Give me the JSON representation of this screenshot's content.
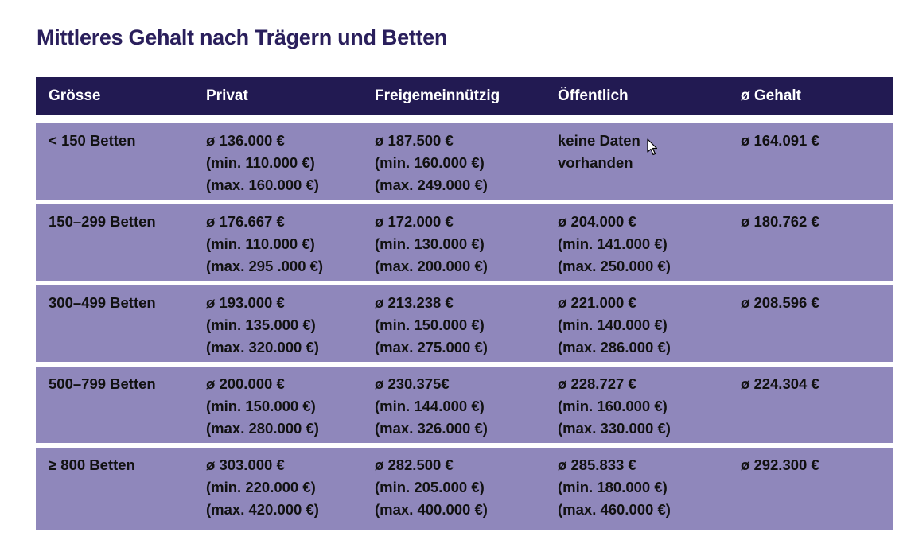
{
  "title": "Mittleres Gehalt nach Trägern und Betten",
  "header": [
    "Grösse",
    "Privat",
    "Freigemeinnützig",
    "Öffentlich",
    "ø Gehalt"
  ],
  "rows": [
    {
      "size": "< 150 Betten",
      "privat": [
        "ø 136.000 €",
        "(min. 110.000 €)",
        "(max. 160.000 €)"
      ],
      "frei": [
        "ø 187.500 €",
        "(min. 160.000 €)",
        "(max. 249.000 €)"
      ],
      "oeff": [
        "keine Daten",
        "vorhanden",
        ""
      ],
      "avg": "ø 164.091 €"
    },
    {
      "size": "150–299 Betten",
      "privat": [
        "ø 176.667 €",
        "(min. 110.000 €)",
        "(max. 295 .000 €)"
      ],
      "frei": [
        "ø 172.000 €",
        "(min. 130.000 €)",
        "(max. 200.000 €)"
      ],
      "oeff": [
        "ø 204.000 €",
        "(min. 141.000 €)",
        "(max. 250.000 €)"
      ],
      "avg": "ø 180.762 €"
    },
    {
      "size": "300–499 Betten",
      "privat": [
        "ø 193.000 €",
        "(min. 135.000 €)",
        "(max. 320.000 €)"
      ],
      "frei": [
        "ø 213.238 €",
        "(min. 150.000 €)",
        "(max. 275.000 €)"
      ],
      "oeff": [
        "ø 221.000 €",
        "(min. 140.000 €)",
        "(max. 286.000 €)"
      ],
      "avg": "ø 208.596 €"
    },
    {
      "size": "500–799 Betten",
      "privat": [
        "ø 200.000 €",
        "(min. 150.000 €)",
        "(max. 280.000 €)"
      ],
      "frei": [
        "ø 230.375€",
        "(min. 144.000 €)",
        "(max. 326.000 €)"
      ],
      "oeff": [
        "ø 228.727 €",
        "(min. 160.000 €)",
        "(max. 330.000 €)"
      ],
      "avg": "ø 224.304 €"
    },
    {
      "size": "≥ 800 Betten",
      "privat": [
        "ø 303.000 €",
        "(min. 220.000 €)",
        "(max. 420.000 €)"
      ],
      "frei": [
        "ø 282.500 €",
        "(min. 205.000 €)",
        "(max. 400.000 €)"
      ],
      "oeff": [
        "ø 285.833 €",
        "(min. 180.000 €)",
        "(max. 460.000 €)"
      ],
      "avg": "ø 292.300 €"
    }
  ],
  "colors": {
    "title": "#2a1f5c",
    "header_bg": "#221a52",
    "row_bg": "#8f87bb"
  },
  "cursor_icon": "mouse-pointer-icon"
}
